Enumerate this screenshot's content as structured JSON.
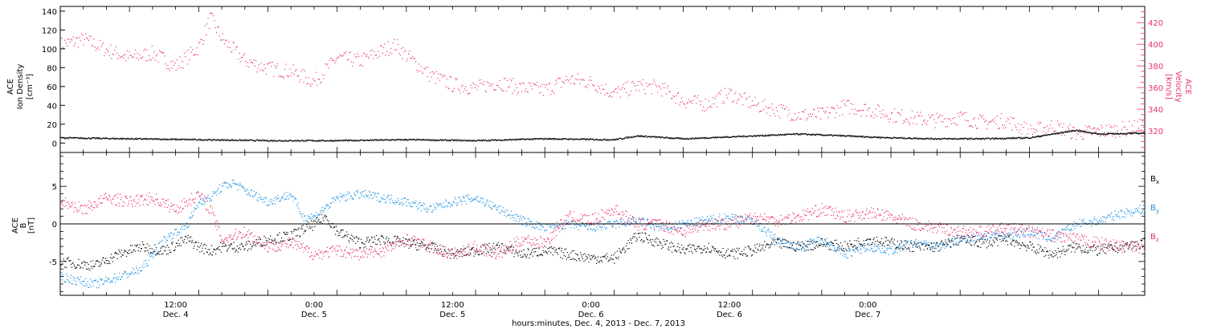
{
  "colors": {
    "black": "#000000",
    "magenta": "#e8336b",
    "blue": "#1a8fe0"
  },
  "chart_data": [
    {
      "type": "scatter",
      "panel": "top",
      "ylabel_left": [
        "ACE",
        "Ion Density",
        "[cm⁻³]"
      ],
      "ylabel_right": [
        "ACE",
        "Velocity",
        "[km/s]"
      ],
      "ylim_left": [
        -10,
        145
      ],
      "yticks_left": [
        "0",
        "20",
        "40",
        "60",
        "80",
        "100",
        "120",
        "140"
      ],
      "ylim_right": [
        300,
        435
      ],
      "yticks_right": [
        "320",
        "340",
        "360",
        "380",
        "400",
        "420"
      ],
      "series": [
        {
          "axis": "right",
          "color": "#e8336b",
          "points": [
            [
              0,
              400
            ],
            [
              2,
              405
            ],
            [
              4,
              395
            ],
            [
              6,
              388
            ],
            [
              8,
              392
            ],
            [
              10,
              380
            ],
            [
              12,
              398
            ],
            [
              13,
              425
            ],
            [
              14,
              405
            ],
            [
              16,
              385
            ],
            [
              18,
              378
            ],
            [
              20,
              375
            ],
            [
              22,
              366
            ],
            [
              24,
              388
            ],
            [
              26,
              385
            ],
            [
              28,
              395
            ],
            [
              29,
              400
            ],
            [
              30,
              390
            ],
            [
              32,
              372
            ],
            [
              34,
              363
            ],
            [
              36,
              360
            ],
            [
              38,
              365
            ],
            [
              40,
              360
            ],
            [
              42,
              358
            ],
            [
              44,
              368
            ],
            [
              46,
              365
            ],
            [
              48,
              355
            ],
            [
              50,
              362
            ],
            [
              52,
              360
            ],
            [
              54,
              348
            ],
            [
              56,
              345
            ],
            [
              58,
              355
            ],
            [
              60,
              345
            ],
            [
              62,
              340
            ],
            [
              64,
              335
            ],
            [
              66,
              335
            ],
            [
              68,
              343
            ],
            [
              70,
              340
            ],
            [
              72,
              335
            ],
            [
              74,
              332
            ],
            [
              76,
              330
            ],
            [
              78,
              333
            ],
            [
              80,
              328
            ],
            [
              82,
              330
            ],
            [
              84,
              320
            ],
            [
              86,
              325
            ],
            [
              88,
              318
            ],
            [
              90,
              320
            ],
            [
              92,
              322
            ],
            [
              94,
              325
            ]
          ]
        },
        {
          "axis": "left",
          "color": "#000000",
          "points": [
            [
              0,
              6
            ],
            [
              6,
              5
            ],
            [
              12,
              4
            ],
            [
              18,
              3
            ],
            [
              24,
              3
            ],
            [
              30,
              4
            ],
            [
              36,
              3
            ],
            [
              42,
              5
            ],
            [
              48,
              4
            ],
            [
              50,
              8
            ],
            [
              54,
              5
            ],
            [
              60,
              8
            ],
            [
              64,
              10
            ],
            [
              68,
              8
            ],
            [
              72,
              6
            ],
            [
              76,
              5
            ],
            [
              80,
              5
            ],
            [
              84,
              6
            ],
            [
              86,
              10
            ],
            [
              88,
              14
            ],
            [
              90,
              10
            ],
            [
              94,
              11
            ]
          ]
        }
      ]
    },
    {
      "type": "scatter",
      "panel": "bottom",
      "ylabel_left": [
        "ACE",
        "B",
        "[nT]"
      ],
      "ylim": [
        -9.5,
        9.5
      ],
      "yticks": [
        "-5",
        "0",
        "5"
      ],
      "zero_line": true,
      "legend": [
        "B",
        "B",
        "B"
      ],
      "legend_sub": [
        "x",
        "y",
        "z"
      ],
      "series": [
        {
          "name": "Bx",
          "color": "#000000",
          "points": [
            [
              0,
              -5
            ],
            [
              3,
              -5.5
            ],
            [
              5,
              -4
            ],
            [
              7,
              -3
            ],
            [
              9,
              -3.5
            ],
            [
              11,
              -2
            ],
            [
              12,
              -3
            ],
            [
              13,
              -3.5
            ],
            [
              14,
              -3
            ],
            [
              16,
              -3
            ],
            [
              18,
              -2
            ],
            [
              20,
              -1.5
            ],
            [
              22,
              0
            ],
            [
              23,
              1
            ],
            [
              24,
              -1
            ],
            [
              26,
              -2.5
            ],
            [
              28,
              -2
            ],
            [
              30,
              -2.5
            ],
            [
              32,
              -3
            ],
            [
              34,
              -4
            ],
            [
              36,
              -3.5
            ],
            [
              38,
              -3
            ],
            [
              40,
              -4
            ],
            [
              42,
              -3.5
            ],
            [
              44,
              -4
            ],
            [
              46,
              -4.5
            ],
            [
              48,
              -4.5
            ],
            [
              50,
              -1.5
            ],
            [
              52,
              -2.5
            ],
            [
              54,
              -3.5
            ],
            [
              56,
              -3
            ],
            [
              58,
              -4
            ],
            [
              60,
              -3.5
            ],
            [
              62,
              -2.5
            ],
            [
              64,
              -3
            ],
            [
              66,
              -2.5
            ],
            [
              68,
              -3
            ],
            [
              70,
              -2
            ],
            [
              72,
              -2.5
            ],
            [
              74,
              -3
            ],
            [
              76,
              -3
            ],
            [
              78,
              -2
            ],
            [
              80,
              -2.5
            ],
            [
              82,
              -2
            ],
            [
              84,
              -3
            ],
            [
              86,
              -4
            ],
            [
              88,
              -3
            ],
            [
              90,
              -3.5
            ],
            [
              92,
              -3
            ],
            [
              94,
              -2.5
            ]
          ]
        },
        {
          "name": "By",
          "color": "#1a8fe0",
          "points": [
            [
              0,
              -7
            ],
            [
              3,
              -8
            ],
            [
              5,
              -7
            ],
            [
              7,
              -6
            ],
            [
              9,
              -2
            ],
            [
              11,
              0
            ],
            [
              12,
              3
            ],
            [
              13,
              3.5
            ],
            [
              14,
              5
            ],
            [
              15,
              5.5
            ],
            [
              16,
              4.5
            ],
            [
              18,
              3
            ],
            [
              20,
              4
            ],
            [
              21,
              1
            ],
            [
              22,
              1
            ],
            [
              24,
              3.5
            ],
            [
              26,
              4
            ],
            [
              28,
              3.5
            ],
            [
              30,
              3
            ],
            [
              32,
              2
            ],
            [
              34,
              3
            ],
            [
              36,
              3.5
            ],
            [
              38,
              2
            ],
            [
              40,
              0.5
            ],
            [
              42,
              -0.5
            ],
            [
              44,
              0
            ],
            [
              46,
              -0.5
            ],
            [
              48,
              0
            ],
            [
              50,
              0.5
            ],
            [
              52,
              -0.5
            ],
            [
              54,
              0
            ],
            [
              56,
              0.5
            ],
            [
              58,
              1
            ],
            [
              60,
              0.5
            ],
            [
              62,
              -2
            ],
            [
              64,
              -3
            ],
            [
              66,
              -2
            ],
            [
              68,
              -4
            ],
            [
              70,
              -3
            ],
            [
              72,
              -3.5
            ],
            [
              74,
              -2.5
            ],
            [
              76,
              -3
            ],
            [
              78,
              -2
            ],
            [
              80,
              -1.5
            ],
            [
              82,
              -1.5
            ],
            [
              84,
              -1
            ],
            [
              86,
              -2
            ],
            [
              88,
              0
            ],
            [
              90,
              0.5
            ],
            [
              92,
              1.5
            ],
            [
              94,
              2
            ]
          ]
        },
        {
          "name": "Bz",
          "color": "#e8336b",
          "points": [
            [
              0,
              3
            ],
            [
              2,
              2
            ],
            [
              4,
              3.5
            ],
            [
              6,
              3
            ],
            [
              8,
              3.5
            ],
            [
              10,
              2
            ],
            [
              12,
              4
            ],
            [
              13,
              2
            ],
            [
              14,
              -2
            ],
            [
              16,
              -1
            ],
            [
              18,
              -3
            ],
            [
              20,
              -2.5
            ],
            [
              22,
              -4
            ],
            [
              24,
              -3.5
            ],
            [
              26,
              -4
            ],
            [
              28,
              -3.5
            ],
            [
              30,
              -2
            ],
            [
              32,
              -3
            ],
            [
              34,
              -4
            ],
            [
              36,
              -3
            ],
            [
              38,
              -4
            ],
            [
              40,
              -2
            ],
            [
              42,
              -2.5
            ],
            [
              44,
              1
            ],
            [
              46,
              0.5
            ],
            [
              48,
              2
            ],
            [
              50,
              0
            ],
            [
              52,
              0
            ],
            [
              54,
              -1
            ],
            [
              56,
              0
            ],
            [
              58,
              0
            ],
            [
              60,
              1
            ],
            [
              62,
              0.5
            ],
            [
              64,
              1
            ],
            [
              66,
              2
            ],
            [
              68,
              1
            ],
            [
              70,
              1.5
            ],
            [
              72,
              1
            ],
            [
              74,
              0
            ],
            [
              76,
              -0.5
            ],
            [
              78,
              -1
            ],
            [
              80,
              -1
            ],
            [
              82,
              -0.5
            ],
            [
              84,
              -1
            ],
            [
              86,
              -1.5
            ],
            [
              88,
              -2
            ],
            [
              90,
              -2.5
            ],
            [
              92,
              -3
            ],
            [
              94,
              -3
            ]
          ]
        }
      ]
    }
  ],
  "xaxis": {
    "tick_labels": [
      {
        "time": "12:00",
        "date": "Dec. 4"
      },
      {
        "time": "0:00",
        "date": "Dec. 5"
      },
      {
        "time": "12:00",
        "date": "Dec. 5"
      },
      {
        "time": "0:00",
        "date": "Dec. 6"
      },
      {
        "time": "12:00",
        "date": "Dec. 6"
      },
      {
        "time": "0:00",
        "date": "Dec. 7"
      }
    ],
    "xlabel": "hours:minutes, Dec.  4, 2013 - Dec.  7, 2013"
  }
}
